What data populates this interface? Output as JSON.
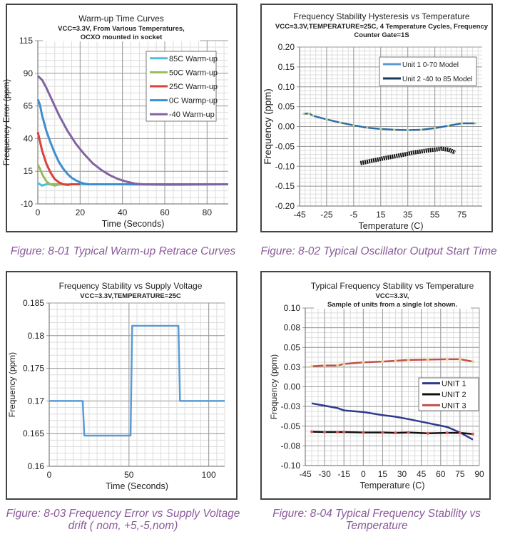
{
  "captions": [
    "Figure: 8-01  Typical Warm-up Retrace Curves",
    "Figure: 8-02 Typical Oscillator Output Start Time",
    "Figure: 8-03 Frequency Error vs Supply Voltage drift ( nom, +5,-5,nom)",
    "Figure: 8-04 Typical Frequency Stability vs Temperature"
  ],
  "chart_data": [
    {
      "type": "line",
      "title": "Warm-up Time Curves",
      "subtitle": [
        "VCC=3.3V, From Various Temperatures,",
        "OCXO mounted in socket"
      ],
      "xlabel": "Time (Seconds)",
      "ylabel": "Frequency Error (ppm)",
      "xlim": [
        0,
        90
      ],
      "ylim": [
        -10,
        115
      ],
      "xticks": [
        0,
        20,
        40,
        60,
        80
      ],
      "xtick_labels": [
        "0",
        "20",
        "40",
        "60",
        "80"
      ],
      "yticks": [
        -10,
        15,
        40,
        65,
        90,
        115
      ],
      "ytick_labels": [
        "-10",
        "15",
        "40",
        "65",
        "90",
        "115"
      ],
      "grid": true,
      "legend": "top-right",
      "series": [
        {
          "name": "85C Warm-up",
          "color": "#4bc0d8",
          "x": [
            0,
            1,
            2,
            4,
            6,
            10,
            20,
            40,
            62,
            90
          ],
          "y": [
            6,
            5,
            4,
            5,
            5,
            5,
            5,
            5,
            4.5,
            5
          ]
        },
        {
          "name": "50C Warm-up",
          "color": "#9bbb59",
          "x": [
            0,
            1,
            2,
            3,
            4,
            5,
            6,
            7,
            8,
            10,
            12
          ],
          "y": [
            20,
            17,
            13,
            10,
            7.5,
            6,
            5,
            4.5,
            4,
            4.8,
            5
          ]
        },
        {
          "name": "25C Warm-up",
          "color": "#d9433b",
          "x": [
            0,
            1,
            2,
            3,
            4,
            6,
            8,
            10,
            12,
            14,
            16,
            20
          ],
          "y": [
            45,
            38,
            31,
            26,
            21,
            14,
            9,
            6.5,
            5,
            4.5,
            5,
            5
          ]
        },
        {
          "name": "0C Warmp-up",
          "color": "#3d8fcf",
          "x": [
            0,
            1,
            2,
            4,
            6,
            8,
            10,
            12,
            14,
            16,
            18,
            20,
            22,
            24,
            26,
            30,
            90
          ],
          "y": [
            70,
            66,
            58,
            46,
            37,
            29,
            22,
            17,
            13,
            10,
            8,
            6.5,
            5.5,
            5,
            5,
            5,
            5
          ]
        },
        {
          "name": "-40 Warm-up",
          "color": "#8064a2",
          "x": [
            0,
            2,
            4,
            6,
            8,
            10,
            14,
            18,
            22,
            26,
            30,
            34,
            38,
            42,
            46,
            50,
            90
          ],
          "y": [
            88,
            85,
            79,
            72,
            65,
            58,
            46,
            36,
            28,
            21,
            16,
            12,
            9,
            7,
            5.5,
            5,
            5
          ]
        }
      ]
    },
    {
      "type": "line",
      "title": "Frequency Stability Hysteresis vs Temperature",
      "subtitle": [
        "VCC=3.3V,TEMPERATURE=25C, 4 Temperature Cycles, Frequency",
        "Counter Gate=1S"
      ],
      "xlabel": "Temperature (C)",
      "ylabel": "Frequency (ppm)",
      "xlim": [
        -45,
        90
      ],
      "ylim": [
        -0.2,
        0.2
      ],
      "xticks": [
        -45,
        -25,
        -5,
        15,
        35,
        55,
        75
      ],
      "xtick_labels": [
        "-45",
        "-25",
        "-5",
        "15",
        "35",
        "55",
        "75"
      ],
      "yticks": [
        -0.2,
        -0.15,
        -0.1,
        -0.05,
        0,
        0.05,
        0.1,
        0.15,
        0.2
      ],
      "ytick_labels": [
        "-0.20",
        "-0.15",
        "-0.10",
        "-0.05",
        "0.00",
        "0.05",
        "0.10",
        "0.15",
        "0.20"
      ],
      "grid": true,
      "legend": "top-right",
      "series": [
        {
          "name": "Unit 1  0-70 Model",
          "color": "#111111",
          "x": [
            0,
            10,
            20,
            30,
            40,
            50,
            60,
            65,
            70
          ],
          "y": [
            -0.092,
            -0.085,
            -0.078,
            -0.072,
            -0.065,
            -0.06,
            -0.056,
            -0.058,
            -0.065
          ]
        },
        {
          "name": "Unit 2 -40 to 85 Model",
          "color": "#2e6da4",
          "x": [
            -42,
            -38,
            -35,
            -25,
            -15,
            -5,
            5,
            15,
            25,
            35,
            45,
            55,
            65,
            75,
            85
          ],
          "y": [
            0.032,
            0.033,
            0.027,
            0.018,
            0.01,
            0.003,
            -0.003,
            -0.006,
            -0.008,
            -0.009,
            -0.008,
            -0.004,
            0.002,
            0.008,
            0.008
          ]
        }
      ]
    },
    {
      "type": "line",
      "title": "Frequency Stability vs Supply Voltage",
      "subtitle": [
        "VCC=3.3V,TEMPERATURE=25C"
      ],
      "xlabel": "Time (Seconds)",
      "ylabel": "Frequency (ppm)",
      "xlim": [
        0,
        110
      ],
      "ylim": [
        0.16,
        0.185
      ],
      "xticks": [
        0,
        50,
        100
      ],
      "xtick_labels": [
        "0",
        "50",
        "100"
      ],
      "yticks": [
        0.16,
        0.165,
        0.17,
        0.175,
        0.18,
        0.185
      ],
      "ytick_labels": [
        "0.16",
        "0.165",
        "0.17",
        "0.175",
        "0.18",
        "0.185"
      ],
      "grid": true,
      "series": [
        {
          "color": "#5b9bd5",
          "x": [
            0,
            21,
            22,
            51,
            52,
            81,
            82,
            110
          ],
          "y": [
            0.17,
            0.17,
            0.1647,
            0.1647,
            0.1815,
            0.1815,
            0.17,
            0.17
          ]
        }
      ]
    },
    {
      "type": "line",
      "title": "Typical Frequency Stability vs Temperature",
      "subtitle": [
        "VCC=3.3V,",
        "Sample of units from a single lot shown."
      ],
      "xlabel": "Temperature (C)",
      "ylabel": "Frequency (ppm)",
      "xlim": [
        -45,
        90
      ],
      "ylim": [
        -0.1,
        0.1
      ],
      "xticks": [
        -45,
        -30,
        -15,
        0,
        15,
        30,
        45,
        60,
        75,
        90
      ],
      "xtick_labels": [
        "-45",
        "-30",
        "-15",
        "0",
        "15",
        "30",
        "45",
        "60",
        "75",
        "90"
      ],
      "yticks": [
        -0.1,
        -0.075,
        -0.05,
        -0.025,
        0,
        0.025,
        0.05,
        0.075,
        0.1
      ],
      "ytick_labels": [
        "-0.10",
        "-0.08",
        "-0.05",
        "-0.03",
        "0.00",
        "0.03",
        "0.05",
        "0.08",
        "0.10"
      ],
      "grid": true,
      "legend": "right",
      "series": [
        {
          "name": "UNIT 1",
          "color": "#2e3a8c",
          "x": [
            -40,
            -30,
            -20,
            -15,
            0,
            15,
            25,
            35,
            50,
            65,
            75,
            85
          ],
          "y": [
            -0.021,
            -0.024,
            -0.027,
            -0.03,
            -0.032,
            -0.036,
            -0.038,
            -0.041,
            -0.046,
            -0.051,
            -0.058,
            -0.067
          ]
        },
        {
          "name": "UNIT 2",
          "color": "#111111",
          "marker": "#e05a5a",
          "x": [
            -40,
            -30,
            -20,
            -15,
            0,
            15,
            25,
            35,
            50,
            65,
            75,
            85
          ],
          "y": [
            -0.057,
            -0.0575,
            -0.0575,
            -0.0575,
            -0.058,
            -0.058,
            -0.0585,
            -0.058,
            -0.059,
            -0.0585,
            -0.0585,
            -0.06
          ]
        },
        {
          "name": "UNIT 3",
          "color": "#c0504d",
          "marker": "#e8d08a",
          "x": [
            -40,
            -30,
            -20,
            -15,
            0,
            15,
            25,
            35,
            50,
            65,
            75,
            85
          ],
          "y": [
            0.026,
            0.027,
            0.027,
            0.029,
            0.031,
            0.032,
            0.033,
            0.034,
            0.0345,
            0.035,
            0.035,
            0.032
          ]
        }
      ]
    }
  ]
}
